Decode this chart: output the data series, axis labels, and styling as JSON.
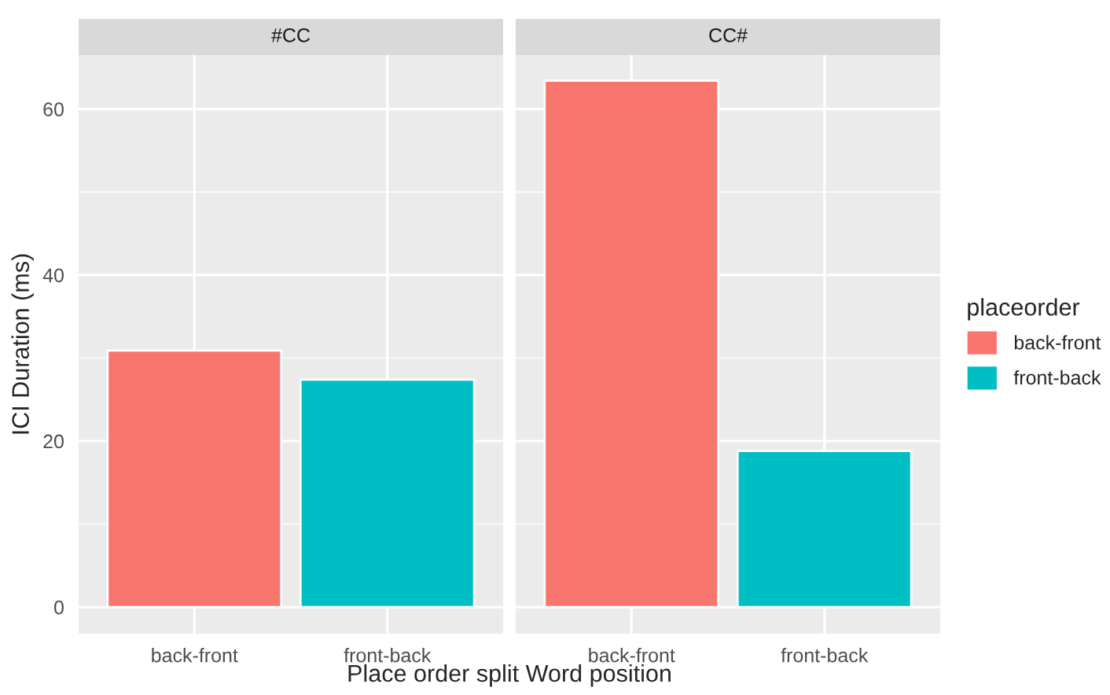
{
  "chart_data": [
    {
      "type": "bar",
      "title": "#CC",
      "categories": [
        "back-front",
        "front-back"
      ],
      "ylabel": "ICI Duration (ms)",
      "xlabel": "Place order split Word position",
      "ylim": [
        -3.2,
        66.5
      ],
      "yticks": [
        0,
        20,
        40,
        60
      ],
      "grid": true,
      "legend": false,
      "series": [
        {
          "color": "#f8766d",
          "values": [
            30.9,
            null
          ]
        },
        {
          "color": "#00bfc4",
          "values": [
            null,
            27.4
          ]
        }
      ]
    },
    {
      "type": "bar",
      "title": "CC#",
      "categories": [
        "back-front",
        "front-back"
      ],
      "ylim": [
        -3.2,
        66.5
      ],
      "yticks": [
        0,
        20,
        40,
        60
      ],
      "tick_labels": "x",
      "grid": true,
      "legend": "right",
      "legend_title": "placeorder",
      "series": [
        {
          "name": "back-front",
          "color": "#f8766d",
          "values": [
            63.4,
            null
          ]
        },
        {
          "name": "front-back",
          "color": "#00bfc4",
          "values": [
            null,
            18.8
          ]
        }
      ]
    }
  ]
}
